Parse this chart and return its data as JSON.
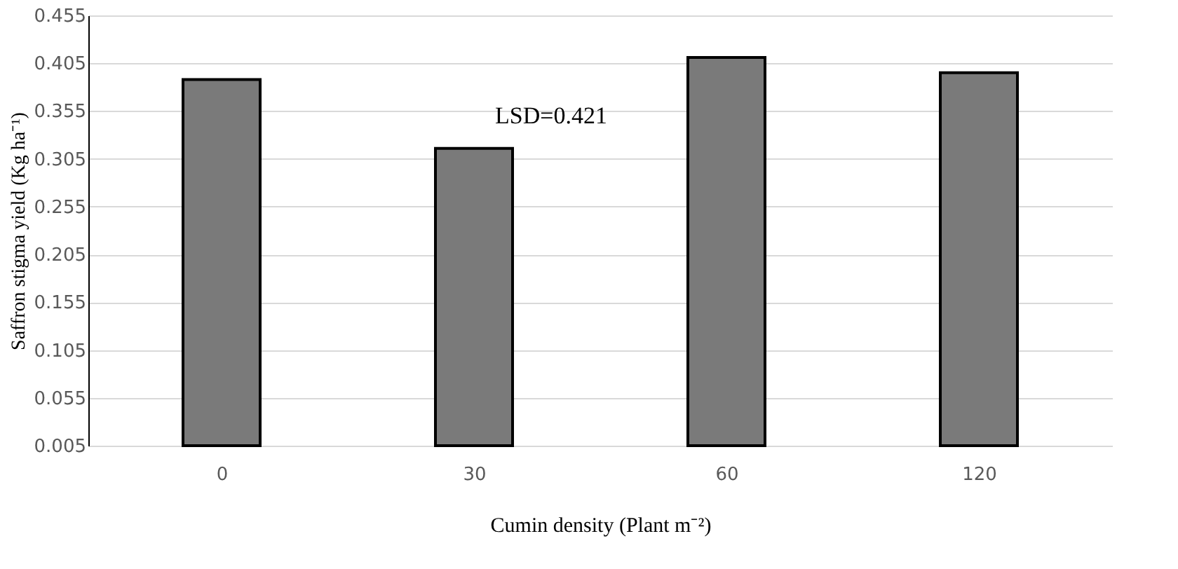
{
  "chart_data": {
    "type": "bar",
    "xlabel": "Cumin density (Plant m⁻²)",
    "ylabel": "Saffron stigma yield (Kg ha⁻¹)",
    "categories": [
      "0",
      "30",
      "60",
      "120"
    ],
    "values": [
      0.388,
      0.316,
      0.411,
      0.395
    ],
    "color": "#7a7a7a",
    "ylim": [
      0.005,
      0.455
    ],
    "yticks": [
      0.005,
      0.055,
      0.105,
      0.155,
      0.205,
      0.255,
      0.305,
      0.355,
      0.405,
      0.455
    ],
    "grid": "y",
    "annotations": [
      "LSD=0.421"
    ]
  }
}
